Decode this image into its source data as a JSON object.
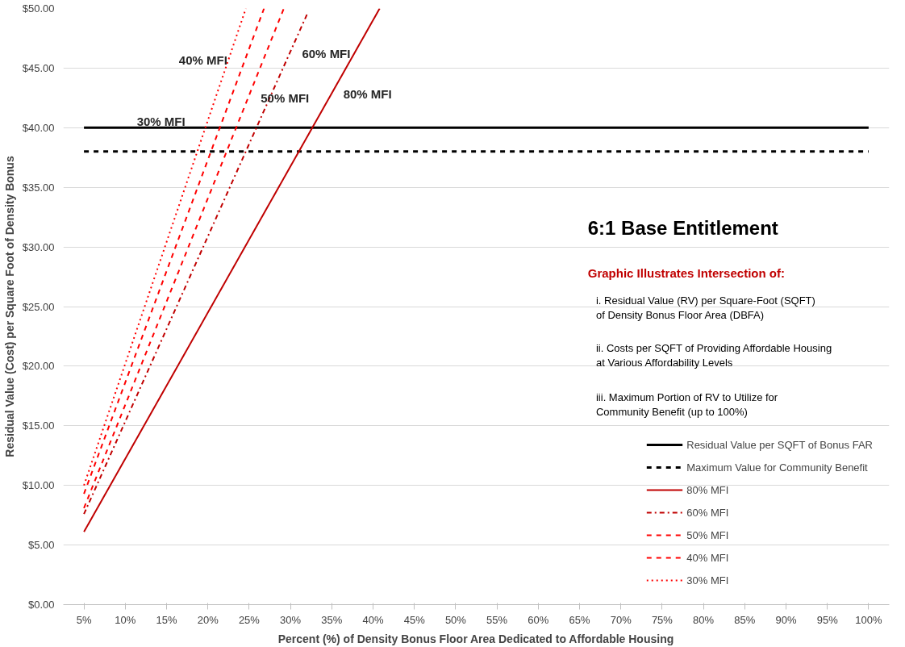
{
  "chart_data": {
    "type": "line",
    "xlabel": "Percent (%) of Density Bonus Floor Area Dedicated to Affordable Housing",
    "ylabel": "Residual Value (Cost) per Square Foot of Density Bonus",
    "xlim": [
      2.5,
      102.5
    ],
    "xticks": [
      {
        "value": 5,
        "label": "5%"
      },
      {
        "value": 10,
        "label": "10%"
      },
      {
        "value": 15,
        "label": "15%"
      },
      {
        "value": 20,
        "label": "20%"
      },
      {
        "value": 25,
        "label": "25%"
      },
      {
        "value": 30,
        "label": "30%"
      },
      {
        "value": 35,
        "label": "35%"
      },
      {
        "value": 40,
        "label": "40%"
      },
      {
        "value": 45,
        "label": "45%"
      },
      {
        "value": 50,
        "label": "50%"
      },
      {
        "value": 55,
        "label": "55%"
      },
      {
        "value": 60,
        "label": "60%"
      },
      {
        "value": 65,
        "label": "65%"
      },
      {
        "value": 70,
        "label": "70%"
      },
      {
        "value": 75,
        "label": "75%"
      },
      {
        "value": 80,
        "label": "80%"
      },
      {
        "value": 85,
        "label": "85%"
      },
      {
        "value": 90,
        "label": "90%"
      },
      {
        "value": 95,
        "label": "95%"
      },
      {
        "value": 100,
        "label": "100%"
      }
    ],
    "ylim": [
      0,
      50
    ],
    "yticks": [
      {
        "value": 0,
        "label": "$0.00"
      },
      {
        "value": 5,
        "label": "$5.00"
      },
      {
        "value": 10,
        "label": "$10.00"
      },
      {
        "value": 15,
        "label": "$15.00"
      },
      {
        "value": 20,
        "label": "$20.00"
      },
      {
        "value": 25,
        "label": "$25.00"
      },
      {
        "value": 30,
        "label": "$30.00"
      },
      {
        "value": 35,
        "label": "$35.00"
      },
      {
        "value": 40,
        "label": "$40.00"
      },
      {
        "value": 45,
        "label": "$45.00"
      },
      {
        "value": 50,
        "label": "$50.00"
      }
    ],
    "grid": "y",
    "legend": "bottom right",
    "marker": "none",
    "series": [
      {
        "name": "Residual Value per SQFT of Bonus FAR",
        "color": "#000000",
        "line_style": "solid",
        "x": [
          5,
          100
        ],
        "values": [
          40,
          40
        ]
      },
      {
        "name": "Maximum Value for Community Benefit",
        "color": "#000000",
        "line_style": "dashed",
        "x": [
          5,
          100
        ],
        "values": [
          38,
          38
        ]
      },
      {
        "name": "80% MFI",
        "color": "#c00000",
        "line_style": "solid",
        "x": [
          5,
          40.8
        ],
        "values": [
          6.1,
          50
        ]
      },
      {
        "name": "60% MFI",
        "color": "#c00000",
        "line_style": "dashdot",
        "x": [
          5,
          32
        ],
        "values": [
          7.6,
          49.5
        ]
      },
      {
        "name": "50% MFI",
        "color": "#ff0000",
        "line_style": "dashed",
        "x": [
          5,
          29.2
        ],
        "values": [
          8.1,
          50
        ]
      },
      {
        "name": "40% MFI",
        "color": "#ff0000",
        "line_style": "dashed",
        "x": [
          5,
          26.8
        ],
        "values": [
          9.3,
          50
        ]
      },
      {
        "name": "30% MFI",
        "color": "#ff0000",
        "line_style": "dotted",
        "x": [
          5,
          24.6
        ],
        "values": [
          10.0,
          50
        ]
      }
    ],
    "annotations": [
      "40% MFI",
      "60% MFI",
      "50% MFI",
      "80% MFI",
      "30% MFI",
      "6:1 Base Entitlement",
      "Graphic Illustrates Intersection of:",
      "i.  Residual Value (RV) per Square-Foot (SQFT)\n    of Density Bonus Floor Area (DBFA)",
      "ii. Costs per SQFT of Providing Affordable Housing\n     at Various Affordability Levels",
      "iii. Maximum Portion of RV to Utilize for\n      Community Benefit (up to 100%)"
    ]
  }
}
